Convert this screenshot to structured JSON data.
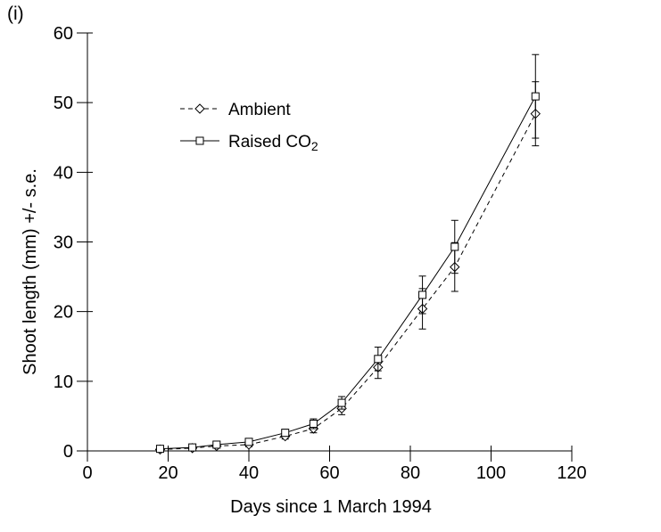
{
  "figure": {
    "panel_label": "(i)",
    "background_color": "#ffffff",
    "ink_color": "#000000"
  },
  "chart_data": {
    "type": "line",
    "title": "",
    "xlabel": "Days since 1 March 1994",
    "ylabel": "Shoot length (mm) +/- s.e.",
    "xlim": [
      0,
      120
    ],
    "ylim": [
      0,
      60
    ],
    "xticks": [
      0,
      20,
      40,
      60,
      80,
      100,
      120
    ],
    "yticks": [
      0,
      10,
      20,
      30,
      40,
      50,
      60
    ],
    "grid": false,
    "legend_position": "upper-left-inside",
    "error_bars": "plus-minus standard error, capped",
    "x": [
      18,
      26,
      32,
      40,
      49,
      56,
      63,
      72,
      83,
      91,
      111
    ],
    "series": [
      {
        "name": "Ambient",
        "legend_text": "Ambient",
        "legend_sub": "",
        "line_style": "dashed",
        "marker": "diamond",
        "color": "#000000",
        "values": [
          0.2,
          0.4,
          0.7,
          0.9,
          2.1,
          3.2,
          6.1,
          12.0,
          20.4,
          26.4,
          48.4
        ],
        "se": [
          0.1,
          0.1,
          0.2,
          0.3,
          0.4,
          0.6,
          0.9,
          1.6,
          2.9,
          3.5,
          4.6
        ]
      },
      {
        "name": "Raised CO2",
        "legend_text": "Raised CO",
        "legend_sub": "2",
        "line_style": "solid",
        "marker": "square",
        "color": "#000000",
        "values": [
          0.3,
          0.5,
          0.9,
          1.3,
          2.6,
          3.9,
          6.9,
          13.2,
          22.4,
          29.3,
          50.9
        ],
        "se": [
          0.1,
          0.2,
          0.2,
          0.3,
          0.5,
          0.7,
          0.9,
          1.7,
          2.7,
          3.8,
          6.0
        ]
      }
    ]
  }
}
